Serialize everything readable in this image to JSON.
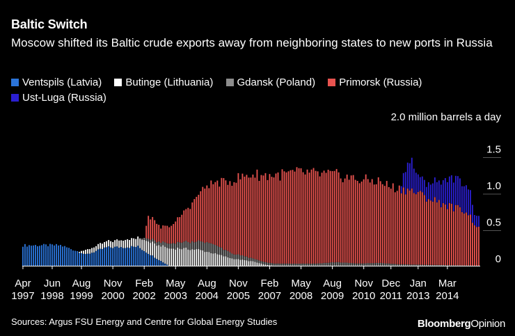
{
  "header": {
    "title": "Baltic Switch",
    "subtitle": "Moscow shifted its Baltic crude exports away from neighboring states to new ports in Russia"
  },
  "legend": [
    {
      "label": "Ventspils (Latvia)",
      "color": "#2b74d9"
    },
    {
      "label": "Butinge (Lithuania)",
      "color": "#ffffff"
    },
    {
      "label": "Gdansk (Poland)",
      "color": "#8c8c8c"
    },
    {
      "label": "Primorsk (Russia)",
      "color": "#e8534f"
    },
    {
      "label": "Ust-Luga (Russia)",
      "color": "#2b1fd1"
    }
  ],
  "footer": {
    "source": "Sources: Argus FSU Energy and Centre for Global Energy Studies",
    "brand_bold": "Bloomberg",
    "brand_light": "Opinion"
  },
  "chart_data": {
    "type": "bar",
    "stacked": true,
    "ylabel": "2.0 million barrels a day",
    "ylim": [
      0,
      2.0
    ],
    "yticks": [
      "0",
      "0.5",
      "1.0",
      "1.5"
    ],
    "ytick_values": [
      0,
      0.5,
      1.0,
      1.5
    ],
    "xticks": [
      {
        "month": "Apr",
        "year": "1997"
      },
      {
        "month": "Jun",
        "year": "1998"
      },
      {
        "month": "Aug",
        "year": "1999"
      },
      {
        "month": "Nov",
        "year": "2000"
      },
      {
        "month": "Feb",
        "year": "2002"
      },
      {
        "month": "May",
        "year": "2003"
      },
      {
        "month": "Aug",
        "year": "2004"
      },
      {
        "month": "Nov",
        "year": "2005"
      },
      {
        "month": "Feb",
        "year": "2007"
      },
      {
        "month": "May",
        "year": "2008"
      },
      {
        "month": "Aug",
        "year": "2009"
      },
      {
        "month": "Nov",
        "year": "2010"
      },
      {
        "month": "Dec",
        "year": "2011"
      },
      {
        "month": "Jan",
        "year": "2013"
      },
      {
        "month": "Mar",
        "year": "2014"
      }
    ],
    "xtick_bar_index": [
      0,
      14,
      28,
      43,
      58,
      73,
      88,
      103,
      118,
      133,
      148,
      163,
      176,
      189,
      203
    ],
    "keyframes_note": "Monthly stacked volumes (million barrels a day), Apr 1997 - mid 2014, given as keyframes by bar index and interpolated monthly.",
    "n_bars": 219,
    "series": [
      {
        "name": "Ventspils (Latvia)",
        "keyframes": [
          [
            0,
            0.28
          ],
          [
            18,
            0.28
          ],
          [
            28,
            0.18
          ],
          [
            30,
            0.15
          ],
          [
            40,
            0.25
          ],
          [
            55,
            0.26
          ],
          [
            60,
            0.17
          ],
          [
            64,
            0.1
          ],
          [
            68,
            0.03
          ],
          [
            70,
            0.0
          ],
          [
            218,
            0.0
          ]
        ]
      },
      {
        "name": "Butinge (Lithuania)",
        "keyframes": [
          [
            0,
            0.0
          ],
          [
            26,
            0.0
          ],
          [
            30,
            0.06
          ],
          [
            40,
            0.08
          ],
          [
            55,
            0.12
          ],
          [
            60,
            0.17
          ],
          [
            64,
            0.19
          ],
          [
            68,
            0.23
          ],
          [
            74,
            0.24
          ],
          [
            84,
            0.22
          ],
          [
            90,
            0.18
          ],
          [
            100,
            0.1
          ],
          [
            110,
            0.06
          ],
          [
            115,
            0.02
          ],
          [
            120,
            0.0
          ],
          [
            218,
            0.0
          ]
        ]
      },
      {
        "name": "Gdansk (Poland)",
        "keyframes": [
          [
            0,
            0.0
          ],
          [
            55,
            0.0
          ],
          [
            58,
            0.03
          ],
          [
            66,
            0.05
          ],
          [
            74,
            0.08
          ],
          [
            80,
            0.1
          ],
          [
            90,
            0.13
          ],
          [
            100,
            0.07
          ],
          [
            110,
            0.04
          ],
          [
            120,
            0.03
          ],
          [
            140,
            0.03
          ],
          [
            150,
            0.05
          ],
          [
            160,
            0.03
          ],
          [
            170,
            0.04
          ],
          [
            180,
            0.02
          ],
          [
            218,
            0.0
          ]
        ]
      },
      {
        "name": "Primorsk (Russia)",
        "keyframes": [
          [
            0,
            0.0
          ],
          [
            58,
            0.0
          ],
          [
            60,
            0.32
          ],
          [
            66,
            0.2
          ],
          [
            72,
            0.26
          ],
          [
            80,
            0.5
          ],
          [
            88,
            0.78
          ],
          [
            95,
            0.9
          ],
          [
            103,
            1.05
          ],
          [
            110,
            1.15
          ],
          [
            118,
            1.2
          ],
          [
            133,
            1.25
          ],
          [
            148,
            1.2
          ],
          [
            160,
            1.15
          ],
          [
            170,
            1.12
          ],
          [
            176,
            1.05
          ],
          [
            185,
            1.02
          ],
          [
            195,
            0.9
          ],
          [
            205,
            0.8
          ],
          [
            212,
            0.75
          ],
          [
            216,
            0.58
          ],
          [
            218,
            0.52
          ]
        ]
      },
      {
        "name": "Ust-Luga (Russia)",
        "keyframes": [
          [
            0,
            0.0
          ],
          [
            180,
            0.0
          ],
          [
            183,
            0.3
          ],
          [
            186,
            0.4
          ],
          [
            190,
            0.2
          ],
          [
            195,
            0.22
          ],
          [
            200,
            0.3
          ],
          [
            205,
            0.4
          ],
          [
            210,
            0.38
          ],
          [
            214,
            0.35
          ],
          [
            216,
            0.15
          ],
          [
            218,
            0.14
          ]
        ]
      }
    ]
  }
}
